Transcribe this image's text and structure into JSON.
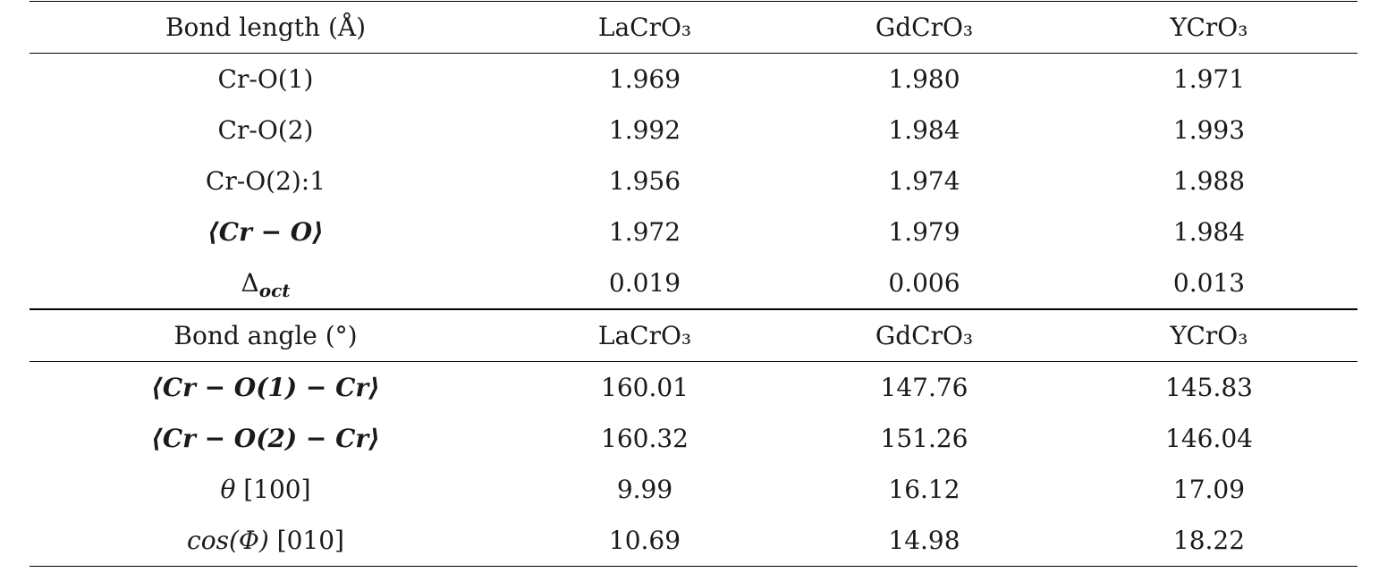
{
  "section_bond_length": {
    "header": [
      "Bond length (Å)",
      "LaCrO₃",
      "GdCrO₃",
      "YCrO₃"
    ],
    "rows": [
      {
        "label": "Cr-O(1)",
        "values": [
          "1.969",
          "1.980",
          "1.971"
        ]
      },
      {
        "label": "Cr-O(2)",
        "values": [
          "1.992",
          "1.984",
          "1.993"
        ]
      },
      {
        "label": "Cr-O(2):1",
        "values": [
          "1.956",
          "1.974",
          "1.988"
        ]
      },
      {
        "label": "⟨Cr − O⟩",
        "values": [
          "1.972",
          "1.979",
          "1.984"
        ]
      },
      {
        "label_main": "Δ",
        "label_sub": "oct",
        "values": [
          "0.019",
          "0.006",
          "0.013"
        ]
      }
    ]
  },
  "section_bond_angle": {
    "header": [
      "Bond angle (°)",
      "LaCrO₃",
      "GdCrO₃",
      "YCrO₃"
    ],
    "rows": [
      {
        "label": "⟨Cr − O(1) − Cr⟩",
        "values": [
          "160.01",
          "147.76",
          "145.83"
        ]
      },
      {
        "label": "⟨Cr − O(2) − Cr⟩",
        "values": [
          "160.32",
          "151.26",
          "146.04"
        ]
      },
      {
        "label_symbol": "θ",
        "label_rest": " [100]",
        "values": [
          "9.99",
          "16.12",
          "17.09"
        ]
      },
      {
        "label_symbol": "cos(Φ)",
        "label_rest": " [010]",
        "values": [
          "10.69",
          "14.98",
          "18.22"
        ]
      }
    ]
  }
}
